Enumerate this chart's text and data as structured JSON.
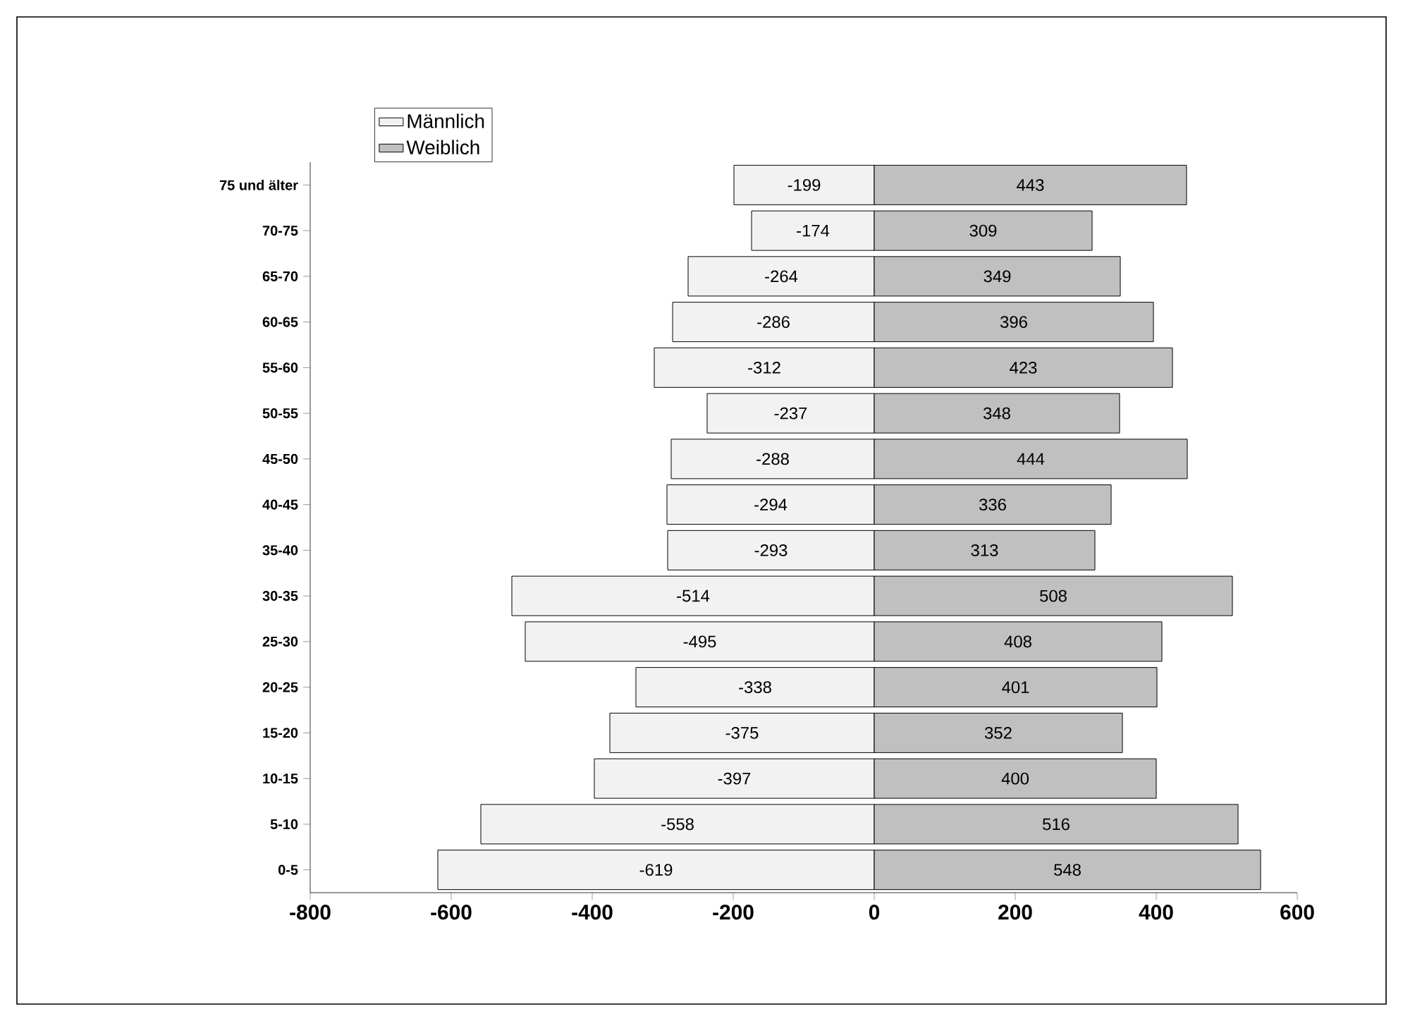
{
  "chart_data": {
    "type": "bar",
    "orientation": "horizontal",
    "stacked": true,
    "legend": "top left",
    "categories": [
      "75 und älter",
      "70-75",
      "65-70",
      "60-65",
      "55-60",
      "50-55",
      "45-50",
      "40-45",
      "35-40",
      "30-35",
      "25-30",
      "20-25",
      "15-20",
      "10-15",
      "5-10",
      "0-5"
    ],
    "series": [
      {
        "name": "Männlich",
        "color": "#f2f2f2",
        "values": [
          -199,
          -174,
          -264,
          -286,
          -312,
          -237,
          -288,
          -294,
          -293,
          -514,
          -495,
          -338,
          -375,
          -397,
          -558,
          -619
        ],
        "value_labels": [
          "-199",
          "-174",
          "-264",
          "-286",
          "-312",
          "-237",
          "-288",
          "-294",
          "-293",
          "-514",
          "-495",
          "-338",
          "-375",
          "-397",
          "-558",
          "-619"
        ]
      },
      {
        "name": "Weiblich",
        "color": "#c0c0c0",
        "values": [
          443,
          309,
          349,
          396,
          423,
          348,
          444,
          336,
          313,
          508,
          408,
          401,
          352,
          400,
          516,
          548
        ],
        "value_labels": [
          "443",
          "309",
          "349",
          "396",
          "423",
          "348",
          "444",
          "336",
          "313",
          "508",
          "408",
          "401",
          "352",
          "400",
          "516",
          "548"
        ]
      }
    ],
    "xlim": [
      -800,
      600
    ],
    "xticks": [
      -800,
      -600,
      -400,
      -200,
      0,
      200,
      400,
      600
    ]
  }
}
